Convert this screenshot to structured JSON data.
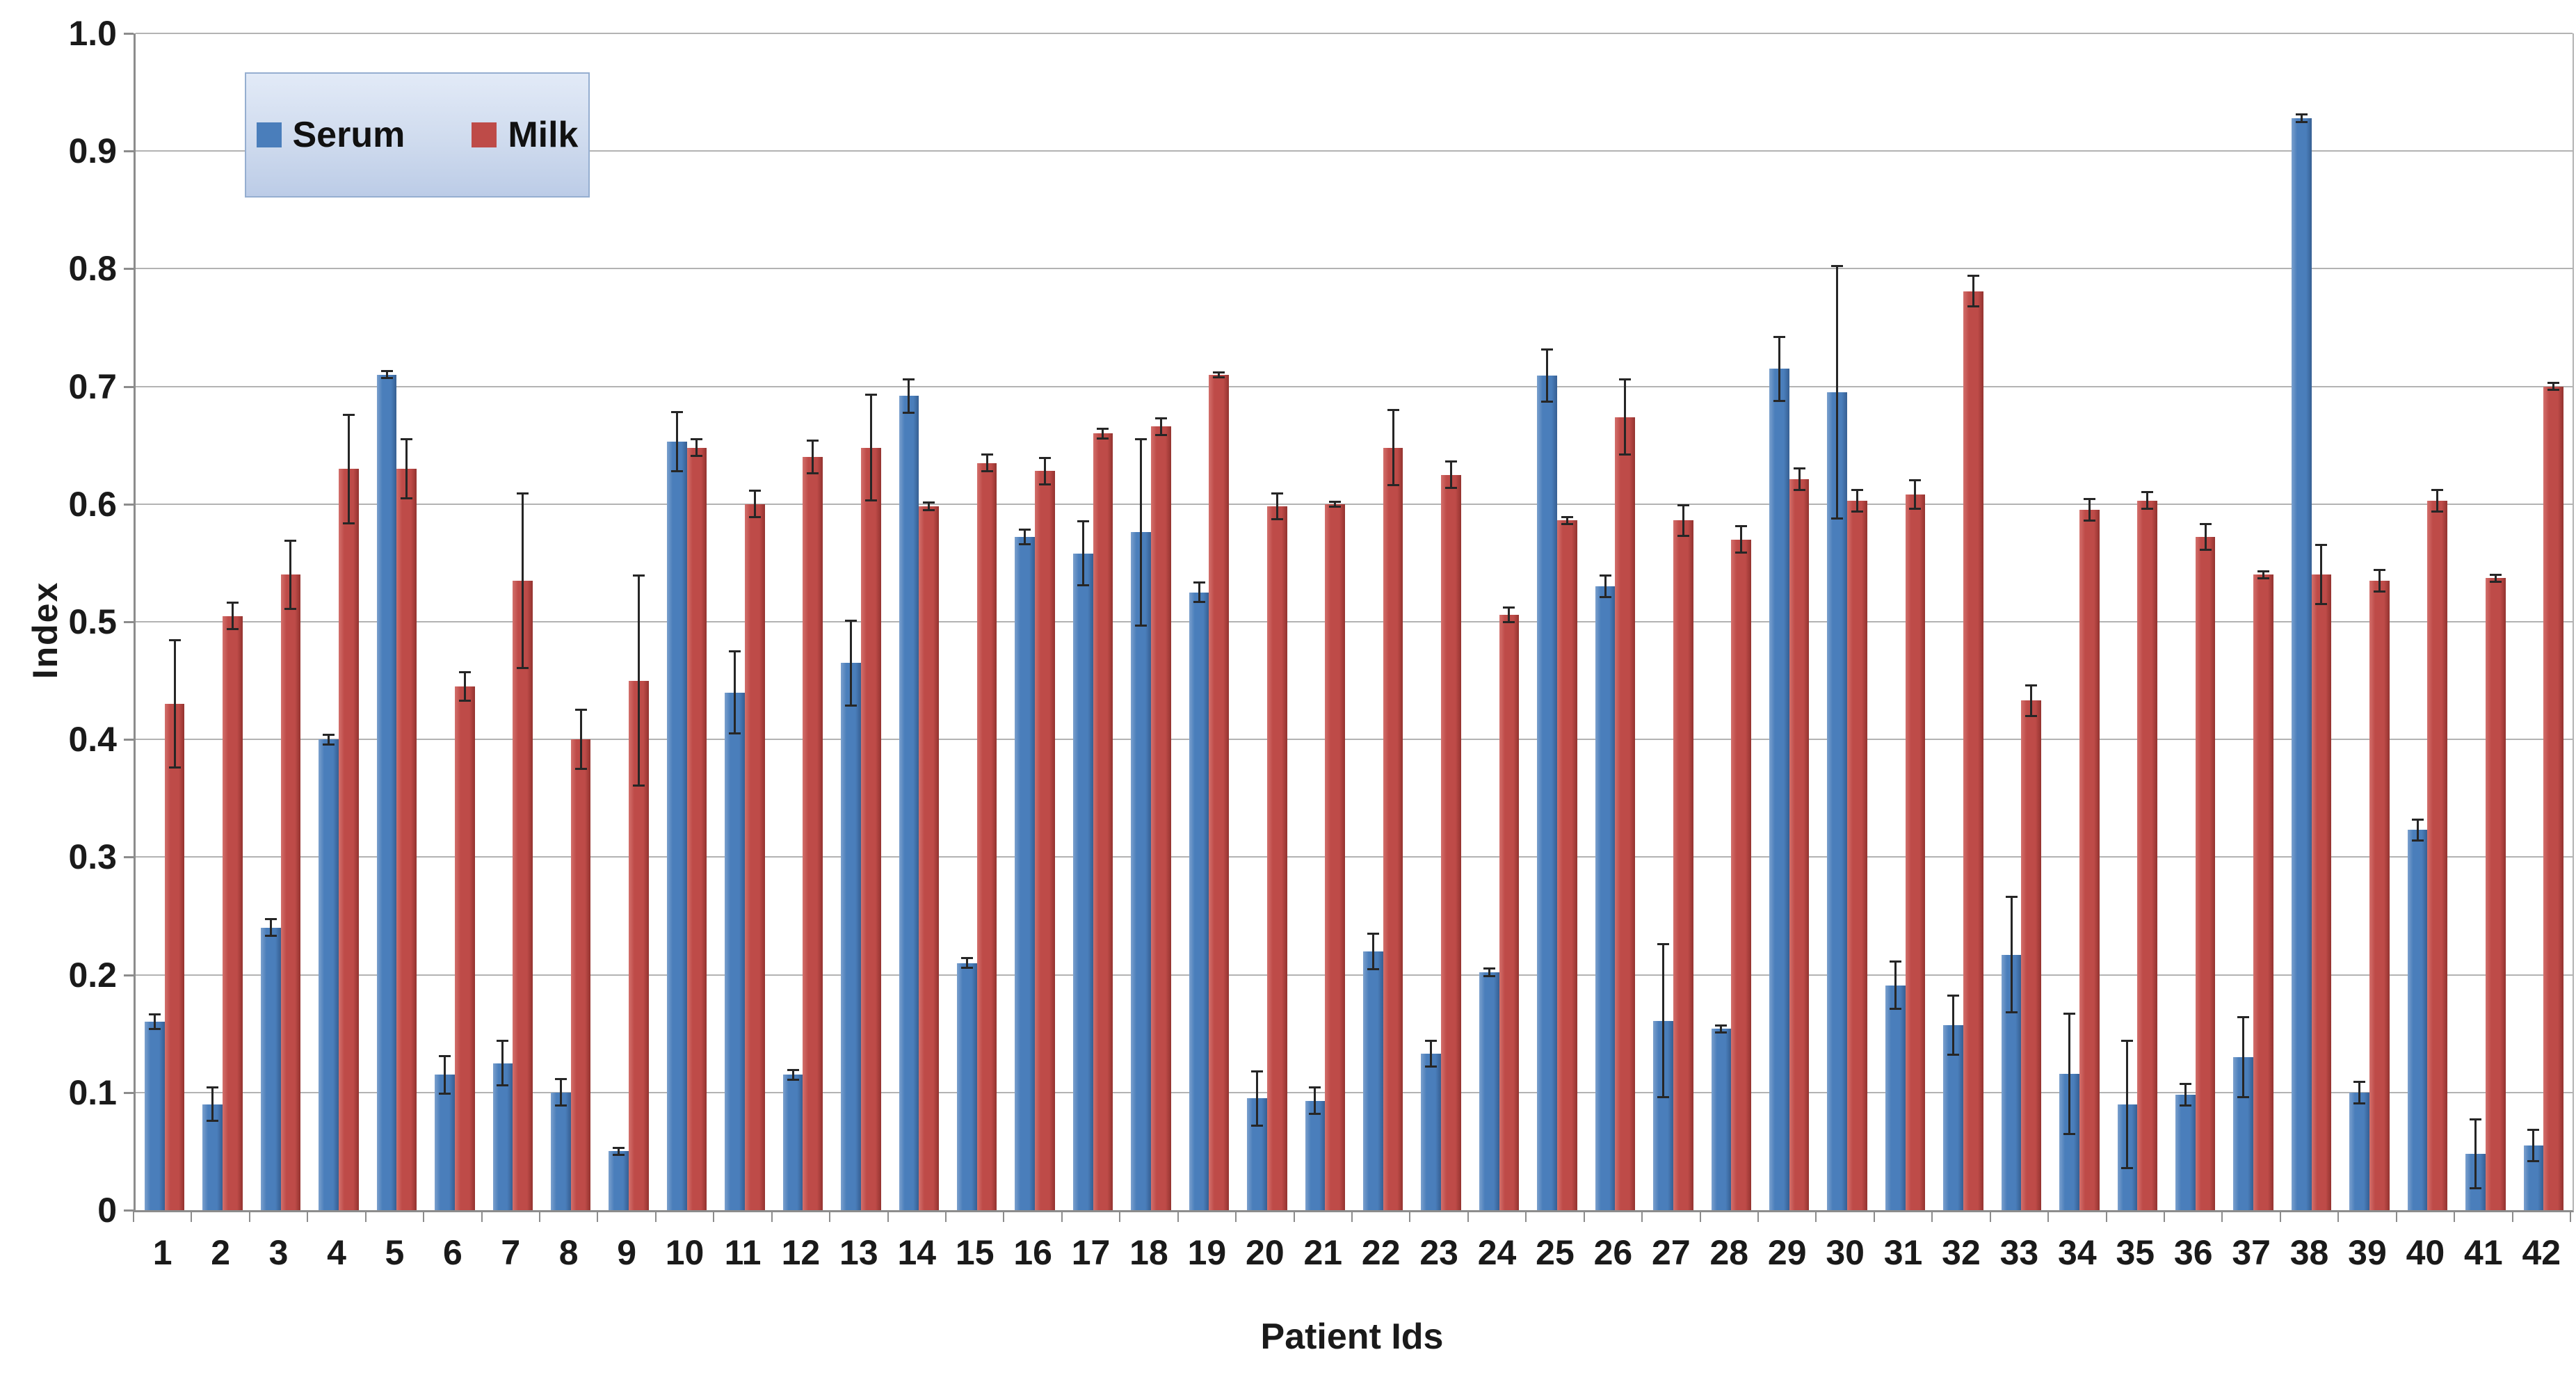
{
  "chart_data": {
    "type": "bar",
    "title": "",
    "xlabel": "Patient Ids",
    "ylabel": "Index",
    "ylim": [
      0,
      1.0
    ],
    "ytick_step": 0.1,
    "ytick_labels": [
      "0",
      "0.1",
      "0.2",
      "0.3",
      "0.4",
      "0.5",
      "0.6",
      "0.7",
      "0.8",
      "0.9",
      "1.0"
    ],
    "grid": true,
    "legend_position": "top-left",
    "error_bars": true,
    "error_bar_color": "#262626",
    "categories": [
      "1",
      "2",
      "3",
      "4",
      "5",
      "6",
      "7",
      "8",
      "9",
      "10",
      "11",
      "12",
      "13",
      "14",
      "15",
      "16",
      "17",
      "18",
      "19",
      "20",
      "21",
      "22",
      "23",
      "24",
      "25",
      "26",
      "27",
      "28",
      "29",
      "30",
      "31",
      "32",
      "33",
      "34",
      "35",
      "36",
      "37",
      "38",
      "39",
      "40",
      "41",
      "42"
    ],
    "series": [
      {
        "name": "Serum",
        "color": "#4a7ebb",
        "values": [
          0.16,
          0.09,
          0.24,
          0.4,
          0.71,
          0.115,
          0.125,
          0.1,
          0.05,
          0.653,
          0.44,
          0.115,
          0.465,
          0.692,
          0.21,
          0.572,
          0.558,
          0.576,
          0.525,
          0.095,
          0.093,
          0.22,
          0.133,
          0.202,
          0.709,
          0.53,
          0.161,
          0.154,
          0.715,
          0.695,
          0.191,
          0.157,
          0.217,
          0.116,
          0.09,
          0.098,
          0.13,
          0.928,
          0.1,
          0.323,
          0.048,
          0.055
        ],
        "errors": [
          0.007,
          0.015,
          0.008,
          0.005,
          0.004,
          0.017,
          0.02,
          0.012,
          0.004,
          0.026,
          0.036,
          0.005,
          0.037,
          0.015,
          0.005,
          0.007,
          0.028,
          0.08,
          0.009,
          0.024,
          0.012,
          0.016,
          0.012,
          0.004,
          0.023,
          0.01,
          0.066,
          0.004,
          0.028,
          0.108,
          0.021,
          0.026,
          0.05,
          0.052,
          0.055,
          0.01,
          0.035,
          0.004,
          0.01,
          0.01,
          0.03,
          0.014
        ]
      },
      {
        "name": "Milk",
        "color": "#be4b48",
        "values": [
          0.43,
          0.505,
          0.54,
          0.63,
          0.63,
          0.445,
          0.535,
          0.4,
          0.45,
          0.648,
          0.6,
          0.64,
          0.648,
          0.598,
          0.635,
          0.628,
          0.66,
          0.666,
          0.71,
          0.598,
          0.6,
          0.648,
          0.625,
          0.506,
          0.586,
          0.674,
          0.586,
          0.57,
          0.621,
          0.603,
          0.608,
          0.781,
          0.433,
          0.595,
          0.603,
          0.572,
          0.54,
          0.54,
          0.535,
          0.603,
          0.537,
          0.7
        ],
        "errors": [
          0.055,
          0.012,
          0.03,
          0.047,
          0.026,
          0.013,
          0.075,
          0.026,
          0.09,
          0.008,
          0.012,
          0.015,
          0.046,
          0.004,
          0.008,
          0.012,
          0.005,
          0.008,
          0.003,
          0.012,
          0.003,
          0.033,
          0.012,
          0.007,
          0.004,
          0.033,
          0.014,
          0.012,
          0.01,
          0.01,
          0.013,
          0.014,
          0.014,
          0.01,
          0.008,
          0.012,
          0.004,
          0.026,
          0.01,
          0.01,
          0.004,
          0.004
        ]
      }
    ]
  },
  "colors": {
    "background": "#ffffff",
    "gridline": "#b3b3b3",
    "axis": "#8c8c8c",
    "serum_bar": "#4a7ebb",
    "milk_bar": "#be4b48",
    "error_bar": "#262626",
    "legend_border": "#95aed0",
    "legend_fill_top": "#e2eaf7",
    "legend_fill_bottom": "#bccce7"
  }
}
